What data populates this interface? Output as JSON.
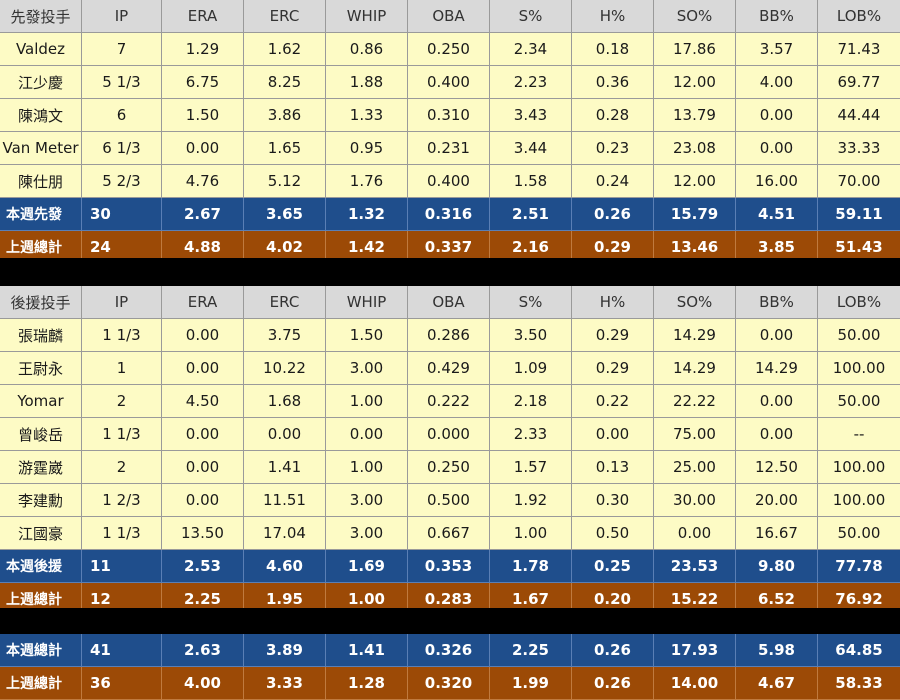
{
  "starters": {
    "header": [
      "先發投手",
      "IP",
      "ERA",
      "ERC",
      "WHIP",
      "OBA",
      "S%",
      "H%",
      "SO%",
      "BB%",
      "LOB%"
    ],
    "rows": [
      [
        "Valdez",
        "7",
        "1.29",
        "1.62",
        "0.86",
        "0.250",
        "2.34",
        "0.18",
        "17.86",
        "3.57",
        "71.43"
      ],
      [
        "江少慶",
        "5 1/3",
        "6.75",
        "8.25",
        "1.88",
        "0.400",
        "2.23",
        "0.36",
        "12.00",
        "4.00",
        "69.77"
      ],
      [
        "陳鴻文",
        "6",
        "1.50",
        "3.86",
        "1.33",
        "0.310",
        "3.43",
        "0.28",
        "13.79",
        "0.00",
        "44.44"
      ],
      [
        "Van Meter",
        "6 1/3",
        "0.00",
        "1.65",
        "0.95",
        "0.231",
        "3.44",
        "0.23",
        "23.08",
        "0.00",
        "33.33"
      ],
      [
        "陳仕朋",
        "5 2/3",
        "4.76",
        "5.12",
        "1.76",
        "0.400",
        "1.58",
        "0.24",
        "12.00",
        "16.00",
        "70.00"
      ]
    ],
    "this_week": [
      "本週先發",
      "30",
      "2.67",
      "3.65",
      "1.32",
      "0.316",
      "2.51",
      "0.26",
      "15.79",
      "4.51",
      "59.11"
    ],
    "last_week": [
      "上週總計",
      "24",
      "4.88",
      "4.02",
      "1.42",
      "0.337",
      "2.16",
      "0.29",
      "13.46",
      "3.85",
      "51.43"
    ]
  },
  "relievers": {
    "header": [
      "後援投手",
      "IP",
      "ERA",
      "ERC",
      "WHIP",
      "OBA",
      "S%",
      "H%",
      "SO%",
      "BB%",
      "LOB%"
    ],
    "rows": [
      [
        "張瑞麟",
        "1 1/3",
        "0.00",
        "3.75",
        "1.50",
        "0.286",
        "3.50",
        "0.29",
        "14.29",
        "0.00",
        "50.00"
      ],
      [
        "王尉永",
        "1",
        "0.00",
        "10.22",
        "3.00",
        "0.429",
        "1.09",
        "0.29",
        "14.29",
        "14.29",
        "100.00"
      ],
      [
        "Yomar",
        "2",
        "4.50",
        "1.68",
        "1.00",
        "0.222",
        "2.18",
        "0.22",
        "22.22",
        "0.00",
        "50.00"
      ],
      [
        "曾峻岳",
        "1 1/3",
        "0.00",
        "0.00",
        "0.00",
        "0.000",
        "2.33",
        "0.00",
        "75.00",
        "0.00",
        "--"
      ],
      [
        "游霆崴",
        "2",
        "0.00",
        "1.41",
        "1.00",
        "0.250",
        "1.57",
        "0.13",
        "25.00",
        "12.50",
        "100.00"
      ],
      [
        "李建勳",
        "1 2/3",
        "0.00",
        "11.51",
        "3.00",
        "0.500",
        "1.92",
        "0.30",
        "30.00",
        "20.00",
        "100.00"
      ],
      [
        "江國豪",
        "1 1/3",
        "13.50",
        "17.04",
        "3.00",
        "0.667",
        "1.00",
        "0.50",
        "0.00",
        "16.67",
        "50.00"
      ]
    ],
    "this_week": [
      "本週後援",
      "11",
      "2.53",
      "4.60",
      "1.69",
      "0.353",
      "1.78",
      "0.25",
      "23.53",
      "9.80",
      "77.78"
    ],
    "last_week": [
      "上週總計",
      "12",
      "2.25",
      "1.95",
      "1.00",
      "0.283",
      "1.67",
      "0.20",
      "15.22",
      "6.52",
      "76.92"
    ]
  },
  "totals": {
    "this_week": [
      "本週總計",
      "41",
      "2.63",
      "3.89",
      "1.41",
      "0.326",
      "2.25",
      "0.26",
      "17.93",
      "5.98",
      "64.85"
    ],
    "last_week": [
      "上週總計",
      "36",
      "4.00",
      "3.33",
      "1.28",
      "0.320",
      "1.99",
      "0.26",
      "14.00",
      "4.67",
      "58.33"
    ]
  },
  "colors": {
    "header": "#d9d9d9",
    "row": "#fdfbc5",
    "blue": "#1f4e8c",
    "brown": "#9c4a06",
    "gap": "#000000"
  }
}
